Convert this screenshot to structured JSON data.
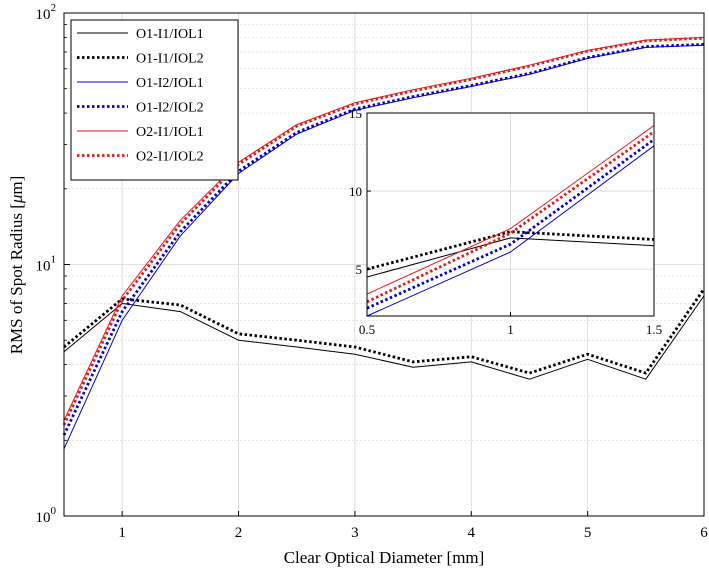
{
  "chart_data": {
    "type": "line",
    "xlabel": "Clear Optical Diameter [mm]",
    "ylabel": "RMS of Spot Radius [",
    "ylabel_unit": "μ",
    "ylabel_suffix": "m]",
    "xlim": [
      0.5,
      6
    ],
    "ylim": [
      1,
      100
    ],
    "yscale": "log",
    "grid": true,
    "legend_position": "top-left",
    "x_ticks": [
      "1",
      "2",
      "3",
      "4",
      "5",
      "6"
    ],
    "y_ticks": [
      {
        "base": "10",
        "exp": "0"
      },
      {
        "base": "10",
        "exp": "1"
      },
      {
        "base": "10",
        "exp": "2"
      }
    ],
    "x": [
      0.5,
      1.0,
      1.5,
      2.0,
      2.5,
      3.0,
      3.5,
      4.0,
      4.5,
      5.0,
      5.5,
      6.0
    ],
    "series": [
      {
        "name": "O1-I1/IOL1",
        "color": "#000000",
        "style": "solid",
        "values": [
          4.5,
          7.0,
          6.5,
          5.0,
          4.7,
          4.4,
          3.9,
          4.1,
          3.5,
          4.2,
          3.5,
          7.5
        ]
      },
      {
        "name": "O1-I1/IOL2",
        "color": "#000000",
        "style": "dotted",
        "values": [
          4.7,
          7.3,
          6.9,
          5.3,
          5.0,
          4.7,
          4.1,
          4.3,
          3.7,
          4.4,
          3.7,
          8.0
        ]
      },
      {
        "name": "O1-I2/IOL1",
        "color": "#0000cc",
        "style": "solid",
        "values": [
          1.85,
          6.0,
          13.0,
          23.0,
          33.0,
          41.0,
          46.0,
          51.0,
          57.0,
          66.0,
          73.0,
          74.5
        ]
      },
      {
        "name": "O1-I2/IOL2",
        "color": "#0000cc",
        "style": "dotted",
        "values": [
          2.1,
          6.5,
          13.5,
          23.5,
          33.5,
          41.5,
          46.5,
          51.5,
          57.5,
          66.5,
          73.5,
          75.0
        ]
      },
      {
        "name": "O2-I1/IOL1",
        "color": "#e31a1c",
        "style": "solid",
        "values": [
          2.4,
          7.5,
          15.0,
          25.5,
          36.0,
          44.0,
          49.5,
          55.0,
          62.0,
          71.0,
          78.0,
          80.0
        ]
      },
      {
        "name": "O2-I1/IOL2",
        "color": "#e31a1c",
        "style": "dotted",
        "values": [
          2.3,
          7.2,
          14.5,
          25.0,
          35.5,
          43.5,
          49.0,
          54.5,
          61.5,
          70.5,
          77.5,
          79.5
        ]
      }
    ],
    "inset": {
      "xlim": [
        0.5,
        1.5
      ],
      "ylim": [
        2.0,
        15.0
      ],
      "x_ticks": [
        "0.5",
        "1",
        "1.5"
      ],
      "y_ticks": [
        "5",
        "10",
        "15"
      ],
      "series": [
        {
          "name": "O1-I1/IOL1",
          "x": [
            0.5,
            1.0,
            1.5
          ],
          "values": [
            4.5,
            7.0,
            6.5
          ]
        },
        {
          "name": "O1-I1/IOL2",
          "x": [
            0.5,
            1.0,
            1.5
          ],
          "values": [
            5.0,
            7.4,
            6.9
          ]
        },
        {
          "name": "O1-I2/IOL1",
          "x": [
            0.5,
            1.0,
            1.5
          ],
          "values": [
            2.0,
            6.1,
            12.9
          ]
        },
        {
          "name": "O1-I2/IOL2",
          "x": [
            0.5,
            1.0,
            1.5
          ],
          "values": [
            2.5,
            6.6,
            13.3
          ]
        },
        {
          "name": "O2-I1/IOL1",
          "x": [
            0.5,
            1.0,
            1.5
          ],
          "values": [
            3.4,
            7.6,
            14.2
          ]
        },
        {
          "name": "O2-I1/IOL2",
          "x": [
            0.5,
            1.0,
            1.5
          ],
          "values": [
            2.9,
            7.3,
            13.8
          ]
        }
      ]
    }
  }
}
